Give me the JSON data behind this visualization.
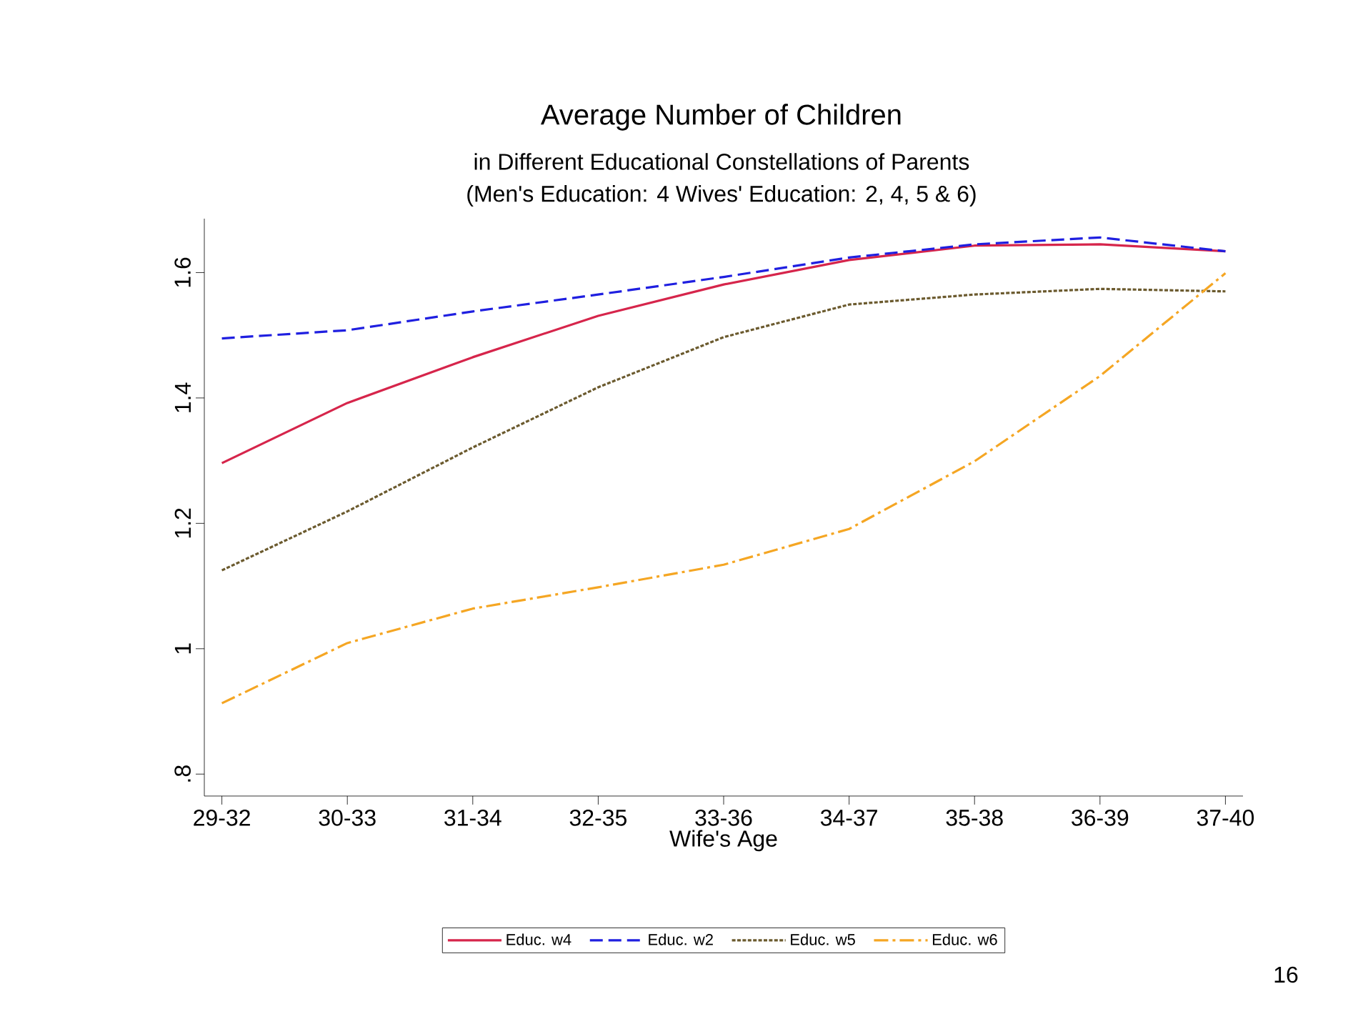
{
  "chart_data": {
    "type": "line",
    "title": "Average Number of Children",
    "subtitle": "in Different Educational Constellations of Parents",
    "xlabel": "Wife's Age",
    "annotations": [
      "(Men's Education: 4    Wives' Education: 2, 4, 5 & 6)",
      "16"
    ],
    "categories": [
      "29-32",
      "30-33",
      "31-34",
      "32-35",
      "33-36",
      "34-37",
      "35-38",
      "36-39",
      "37-40"
    ],
    "ylim": [
      0.765,
      1.686
    ],
    "yticks": [
      {
        "value": 0.8,
        "label": ".8"
      },
      1,
      1.2,
      1.4,
      1.6
    ],
    "grid": false,
    "legend": "bottom",
    "marker": "none",
    "series": [
      {
        "name": "Educ. w4",
        "color": "#d6254b",
        "line_style": "solid",
        "values": [
          1.296,
          1.392,
          1.465,
          1.531,
          1.581,
          1.62,
          1.643,
          1.645,
          1.634
        ]
      },
      {
        "name": "Educ. w2",
        "color": "#1f1fe0",
        "line_style": "dashed",
        "values": [
          1.495,
          1.508,
          1.538,
          1.565,
          1.593,
          1.624,
          1.645,
          1.656,
          1.634
        ]
      },
      {
        "name": "Educ. w5",
        "color": "#6b5a2e",
        "line_style": "dotted",
        "values": [
          1.125,
          1.219,
          1.321,
          1.417,
          1.497,
          1.549,
          1.565,
          1.574,
          1.57
        ]
      },
      {
        "name": "Educ. w6",
        "color": "#f5a623",
        "line_style": "dashdot",
        "values": [
          0.913,
          1.009,
          1.064,
          1.098,
          1.134,
          1.191,
          1.299,
          1.435,
          1.599
        ]
      }
    ]
  }
}
